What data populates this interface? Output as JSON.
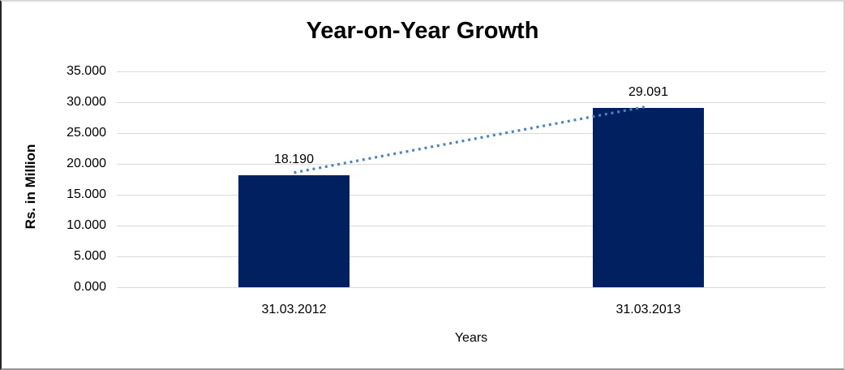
{
  "chart_data": {
    "type": "bar",
    "title": "Year-on-Year Growth",
    "xlabel": "Years",
    "ylabel": "Rs. in Million",
    "categories": [
      "31.03.2012",
      "31.03.2013"
    ],
    "values": [
      18190,
      29091
    ],
    "value_labels": [
      "18.190",
      "29.091"
    ],
    "y_ticks": [
      "0.000",
      "5.000",
      "10.000",
      "15.000",
      "20.000",
      "25.000",
      "30.000",
      "35.000"
    ],
    "ylim": [
      0,
      35000
    ],
    "grid": true,
    "legend": "none",
    "trendline": {
      "present": true,
      "style": "dotted",
      "from_value": 18190,
      "to_value": 29091
    },
    "colors": {
      "bar": "#002060",
      "trendline": "#4f81bd",
      "gridline": "#d9d9d9",
      "text": "#000000",
      "background": "#ffffff"
    }
  }
}
